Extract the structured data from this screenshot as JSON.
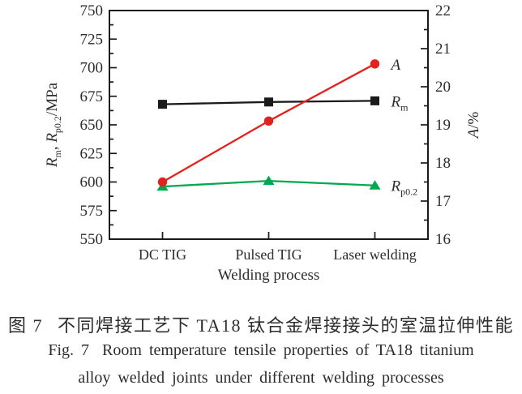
{
  "figure": {
    "kind": "scientific-line-chart-figure"
  },
  "chart_data": {
    "type": "line",
    "categories": [
      "DC TIG",
      "Pulsed TIG",
      "Laser welding"
    ],
    "xlabel": "Welding process",
    "left_axis": {
      "label": "Rm, Rp0.2/MPa",
      "label_parts": [
        [
          "R",
          "i"
        ],
        [
          "m",
          "s"
        ],
        [
          ", ",
          ""
        ],
        [
          "R",
          "i"
        ],
        [
          "p0.2",
          "s"
        ],
        [
          "/MPa",
          ""
        ]
      ],
      "min": 550,
      "max": 750,
      "major_step": 25,
      "minor_step": 12.5,
      "major_ticks": [
        550,
        575,
        600,
        625,
        650,
        675,
        700,
        725,
        750
      ]
    },
    "right_axis": {
      "label": "A/%",
      "label_parts": [
        [
          "A",
          "i"
        ],
        [
          "/%",
          ""
        ]
      ],
      "min": 16,
      "max": 22,
      "major_step": 1,
      "minor_step": 0.5,
      "major_ticks": [
        16,
        17,
        18,
        19,
        20,
        21,
        22
      ]
    },
    "grid": false,
    "legend_position": "end-of-line-labels",
    "series": [
      {
        "name": "Rp0.2",
        "label_parts": [
          [
            "R",
            "i"
          ],
          [
            "p0.2",
            "s"
          ]
        ],
        "axis": "left",
        "marker": "triangle",
        "color": "#00a84f",
        "values": [
          596,
          601,
          597
        ]
      },
      {
        "name": "Rm",
        "label_parts": [
          [
            "R",
            "i"
          ],
          [
            "m",
            "s"
          ]
        ],
        "axis": "left",
        "marker": "square",
        "color": "#1a1a1a",
        "values": [
          668,
          670,
          671
        ]
      },
      {
        "name": "A",
        "label_parts": [
          [
            "A",
            "i"
          ]
        ],
        "axis": "right",
        "marker": "circle",
        "color": "#e2231d",
        "values": [
          17.5,
          19.1,
          20.6
        ]
      }
    ]
  },
  "caption": {
    "zh_label": "图 7",
    "zh_text": "不同焊接工艺下 TA18 钛合金焊接接头的室温拉伸性能",
    "en_label": "Fig. 7",
    "en_line1": "Room temperature tensile properties of TA18 titanium",
    "en_line2": "alloy welded joints under different welding processes"
  },
  "colors": {
    "axis": "#1a1a1a",
    "text": "#2d2d2d",
    "series_A": "#e2231d",
    "series_Rm": "#1a1a1a",
    "series_Rp02": "#00a84f",
    "background": "#ffffff"
  }
}
